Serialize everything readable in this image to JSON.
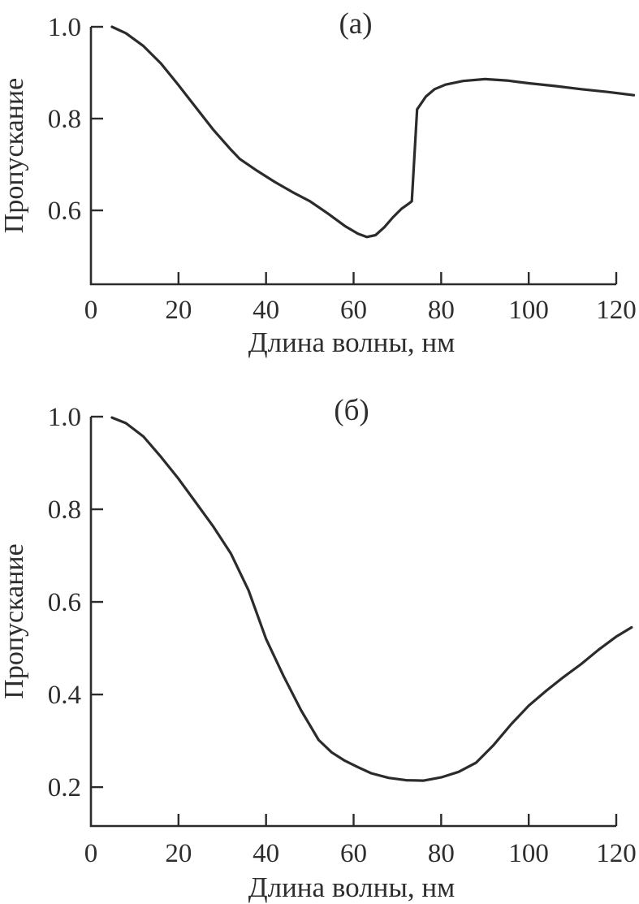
{
  "figure": {
    "background": "#ffffff",
    "line_color": "#2b2b2b",
    "text_color": "#2e2e2e"
  },
  "chart_data": [
    {
      "type": "line",
      "panel_label": "(а)",
      "xlabel": "Длина волны, нм",
      "ylabel": "Пропускание",
      "xlim": [
        0,
        124
      ],
      "ylim": [
        0.439,
        1.0
      ],
      "x_axis_end": 120,
      "grid": false,
      "legend": "none",
      "xtick_values": [
        0,
        20,
        40,
        60,
        80,
        100,
        120
      ],
      "xtick_labels": [
        "0",
        "20",
        "40",
        "60",
        "80",
        "100",
        "120"
      ],
      "ytick_values": [
        0.6,
        0.8,
        1.0
      ],
      "ytick_labels": [
        "0.6",
        "0.8",
        "1.0"
      ],
      "series": [
        {
          "name": "transmittance-a",
          "points": [
            [
              4.8,
              1.0
            ],
            [
              8,
              0.986
            ],
            [
              12,
              0.958
            ],
            [
              16,
              0.92
            ],
            [
              20,
              0.873
            ],
            [
              24,
              0.824
            ],
            [
              28,
              0.775
            ],
            [
              32,
              0.732
            ],
            [
              34,
              0.712
            ],
            [
              38,
              0.686
            ],
            [
              42,
              0.662
            ],
            [
              46,
              0.64
            ],
            [
              50,
              0.62
            ],
            [
              54,
              0.594
            ],
            [
              58,
              0.566
            ],
            [
              61,
              0.549
            ],
            [
              63,
              0.542
            ],
            [
              65,
              0.546
            ],
            [
              67,
              0.563
            ],
            [
              69,
              0.585
            ],
            [
              71,
              0.604
            ],
            [
              72.5,
              0.614
            ],
            [
              73.3,
              0.62
            ],
            [
              74.5,
              0.82
            ],
            [
              76.5,
              0.848
            ],
            [
              78.5,
              0.864
            ],
            [
              81,
              0.874
            ],
            [
              85,
              0.882
            ],
            [
              90,
              0.886
            ],
            [
              95,
              0.883
            ],
            [
              100,
              0.877
            ],
            [
              106,
              0.871
            ],
            [
              112,
              0.864
            ],
            [
              118,
              0.858
            ],
            [
              124,
              0.851
            ]
          ]
        }
      ]
    },
    {
      "type": "line",
      "panel_label": "(б)",
      "xlabel": "Длина волны, нм",
      "ylabel": "Пропускание",
      "xlim": [
        0,
        124
      ],
      "ylim": [
        0.116,
        1.0
      ],
      "x_axis_end": 120,
      "grid": false,
      "legend": "none",
      "xtick_values": [
        0,
        20,
        40,
        60,
        80,
        100,
        120
      ],
      "xtick_labels": [
        "0",
        "20",
        "40",
        "60",
        "80",
        "100",
        "120"
      ],
      "ytick_values": [
        0.2,
        0.4,
        0.6,
        0.8,
        1.0
      ],
      "ytick_labels": [
        "0.2",
        "0.4",
        "0.6",
        "0.8",
        "1.0"
      ],
      "series": [
        {
          "name": "transmittance-b",
          "points": [
            [
              4.8,
              0.998
            ],
            [
              8,
              0.986
            ],
            [
              12,
              0.957
            ],
            [
              16,
              0.913
            ],
            [
              20,
              0.866
            ],
            [
              24,
              0.814
            ],
            [
              28,
              0.762
            ],
            [
              32,
              0.704
            ],
            [
              36,
              0.625
            ],
            [
              40,
              0.52
            ],
            [
              44,
              0.44
            ],
            [
              48,
              0.366
            ],
            [
              52,
              0.302
            ],
            [
              55,
              0.275
            ],
            [
              58,
              0.257
            ],
            [
              61,
              0.243
            ],
            [
              64,
              0.23
            ],
            [
              68,
              0.22
            ],
            [
              72,
              0.215
            ],
            [
              76,
              0.214
            ],
            [
              80,
              0.221
            ],
            [
              84,
              0.233
            ],
            [
              88,
              0.253
            ],
            [
              92,
              0.291
            ],
            [
              96,
              0.336
            ],
            [
              100,
              0.376
            ],
            [
              104,
              0.408
            ],
            [
              108,
              0.438
            ],
            [
              112,
              0.466
            ],
            [
              116,
              0.497
            ],
            [
              120,
              0.525
            ],
            [
              123.5,
              0.545
            ]
          ]
        }
      ]
    }
  ]
}
